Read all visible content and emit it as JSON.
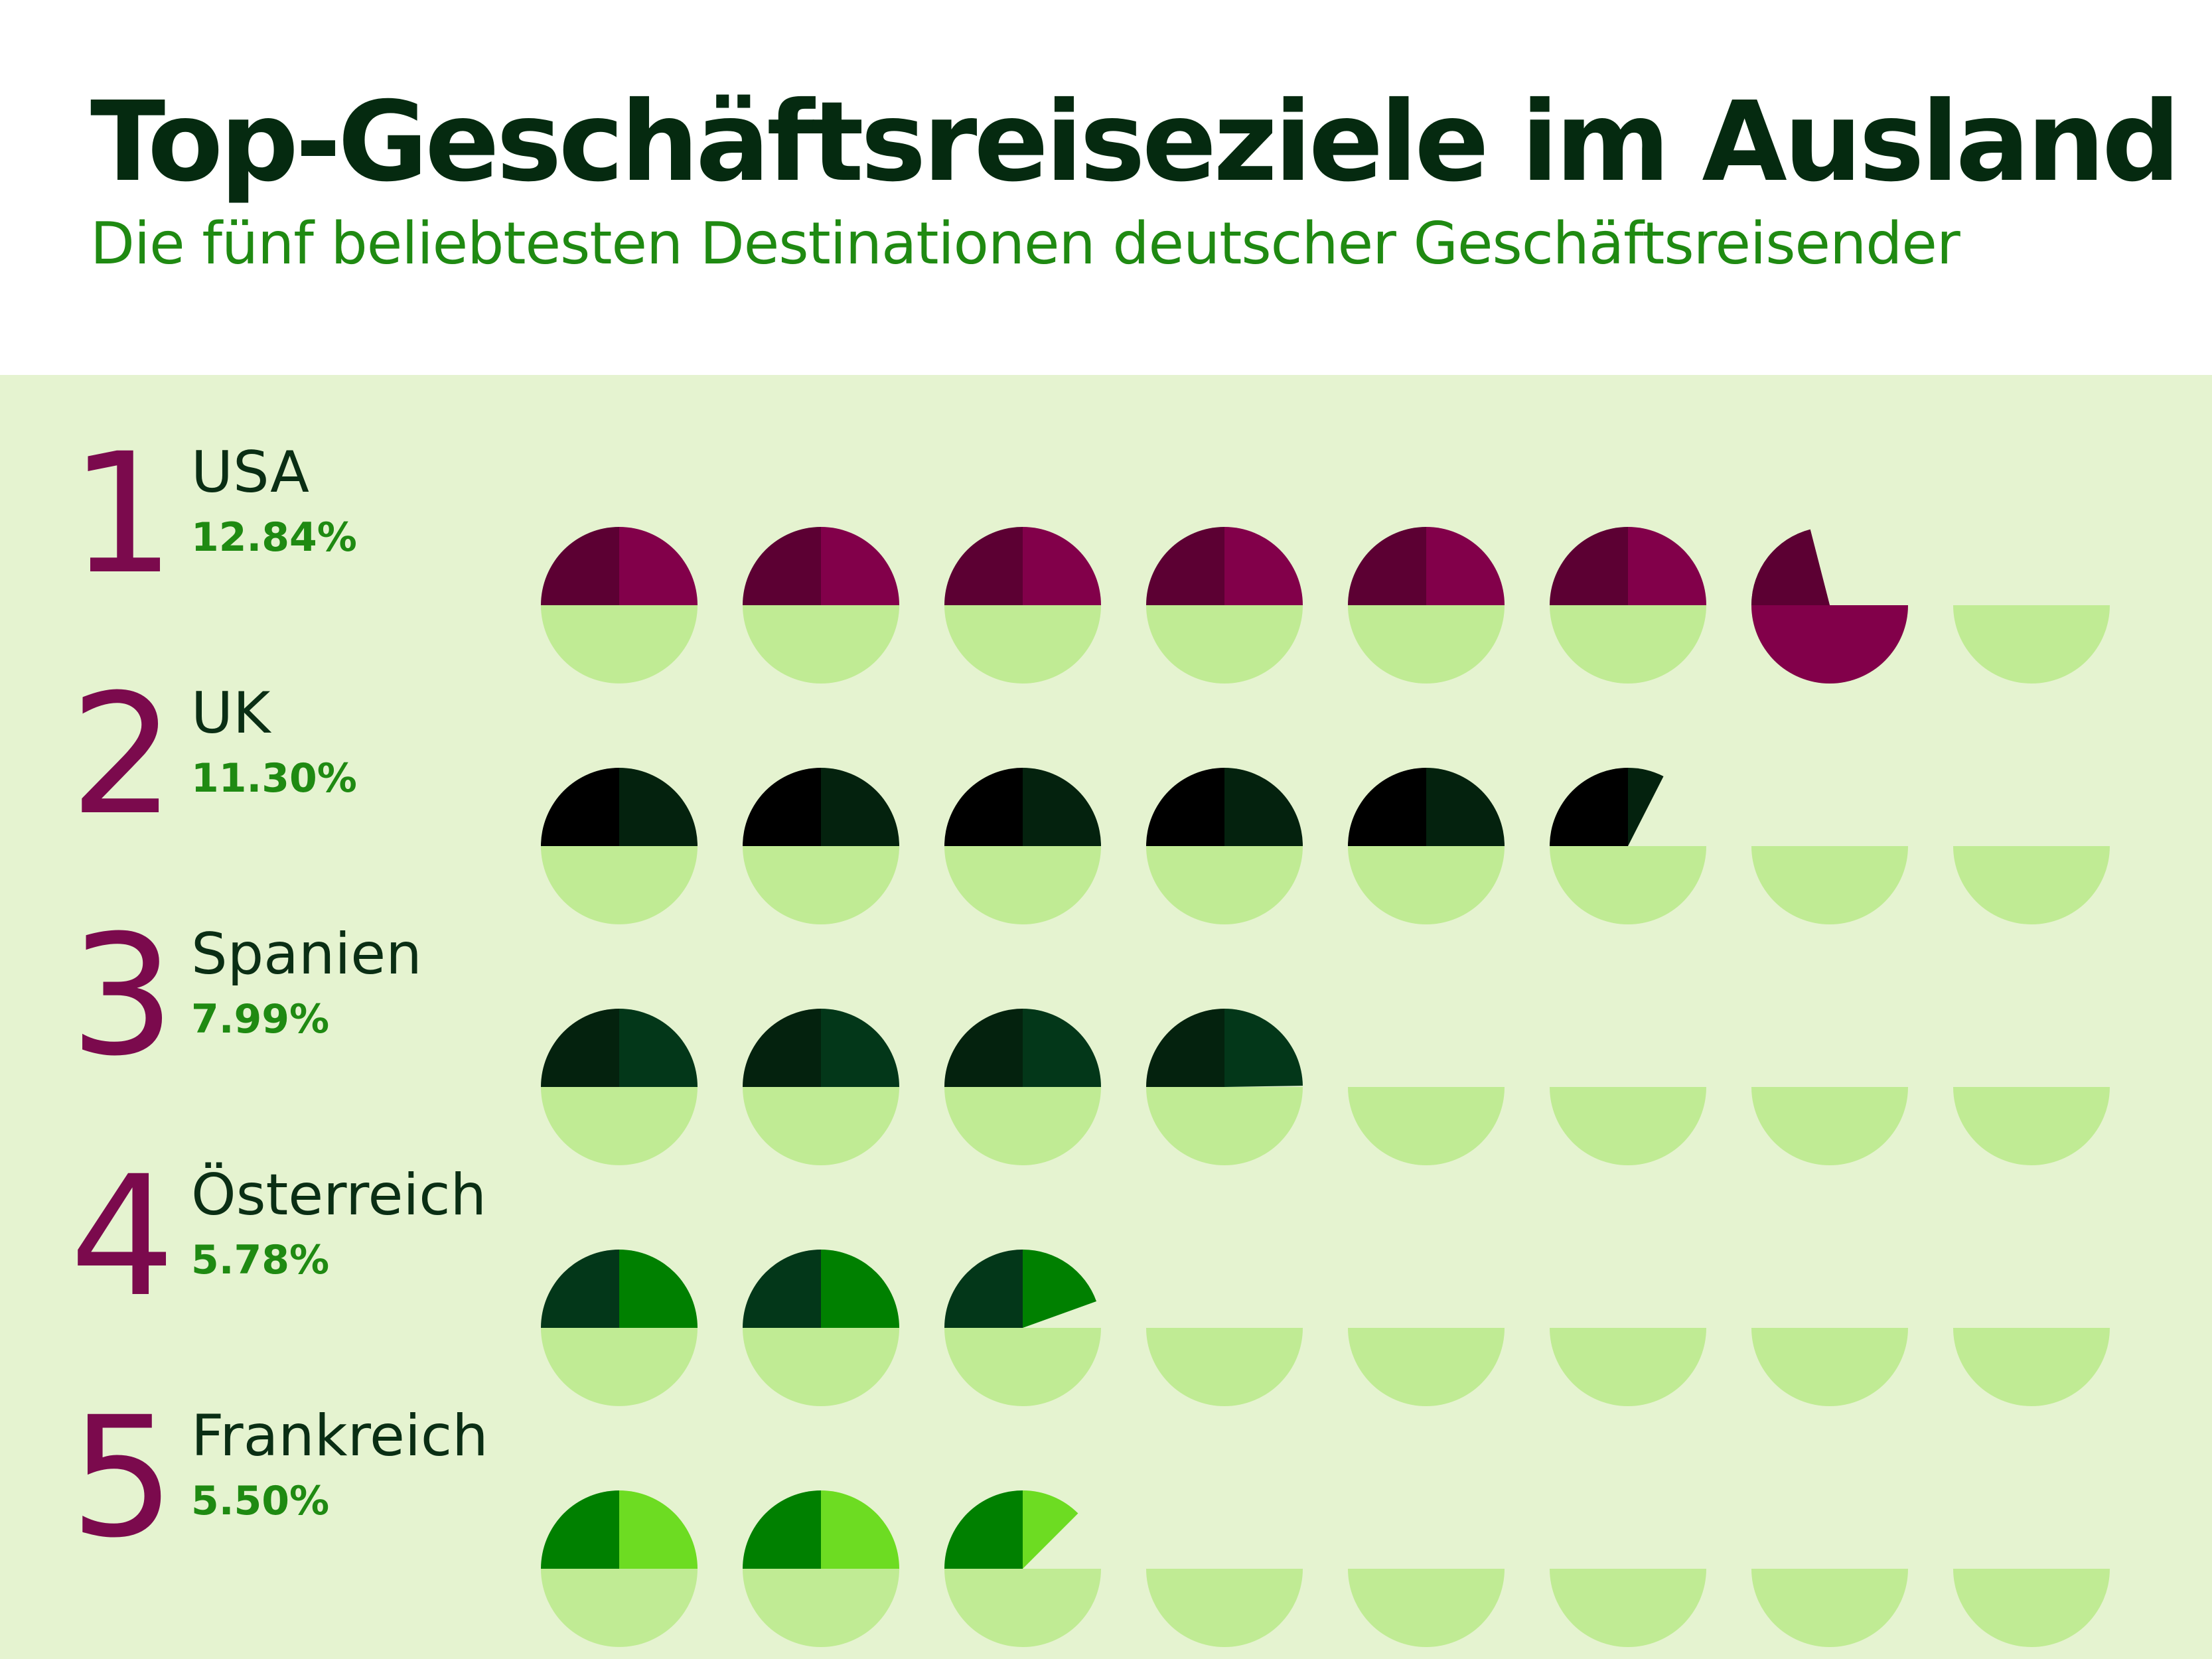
{
  "header": {
    "title": "Top-Geschäftsreiseziele im Ausland",
    "subtitle": "Die fünf beliebtesten Destinationen deutscher Geschäftsreisender"
  },
  "chart_data": {
    "type": "pictogram",
    "units_per_icon": 2,
    "icons_per_row": 8,
    "empty_color": "#c0eb94",
    "rows": [
      {
        "rank": "1",
        "country": "USA",
        "value_label": "12.84%",
        "value": 12.84,
        "color_top": "#5c0033",
        "color_bottom": "#82004a"
      },
      {
        "rank": "2",
        "country": "UK",
        "value_label": "11.30%",
        "value": 11.3,
        "color_top": "#000000",
        "color_bottom": "#04220e"
      },
      {
        "rank": "3",
        "country": "Spanien",
        "value_label": "7.99%",
        "value": 7.99,
        "color_top": "#04220e",
        "color_bottom": "#033719"
      },
      {
        "rank": "4",
        "country": "Österreich",
        "value_label": "5.78%",
        "value": 5.78,
        "color_top": "#033719",
        "color_bottom": "#008000"
      },
      {
        "rank": "5",
        "country": "Frankreich",
        "value_label": "5.50%",
        "value": 5.5,
        "color_top": "#008000",
        "color_bottom": "#6ddc22"
      }
    ]
  }
}
